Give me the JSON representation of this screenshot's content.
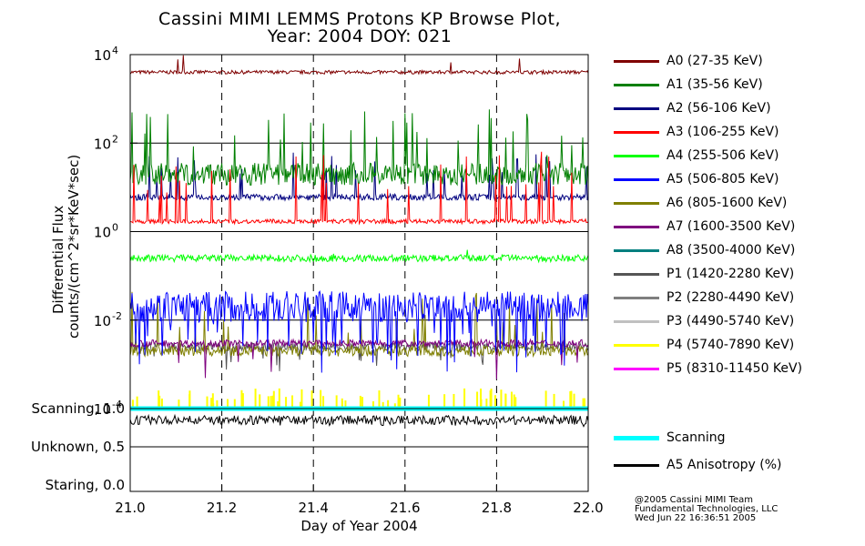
{
  "chart_data": {
    "type": "line",
    "title": [
      "Cassini MIMI LEMMS Protons KP Browse Plot,",
      "Year: 2004 DOY: 021"
    ],
    "xlabel": "Day of Year 2004",
    "ylabel": [
      "Differential Flux",
      "counts/(cm^2*sr*KeV*sec)"
    ],
    "xlim": [
      21.0,
      22.0
    ],
    "x_ticks": [
      "21.0",
      "21.2",
      "21.4",
      "21.6",
      "21.8",
      "22.0"
    ],
    "flux_panel": {
      "yscale": "log",
      "ylim": [
        0.0001,
        10000
      ],
      "y_ticks": [
        "10^4",
        "10^2",
        "10^0",
        "10^-2",
        "10^-4"
      ]
    },
    "status_panel": {
      "ylim": [
        0.0,
        1.0
      ],
      "y_ticks": [
        {
          "label": "Scanning, 1.0",
          "value": 1.0
        },
        {
          "label": "Unknown, 0.5",
          "value": 0.5
        },
        {
          "label": "Staring, 0.0",
          "value": 0.0
        }
      ]
    },
    "series": [
      {
        "name": "A0 (27-35 KeV)",
        "color": "#7f0000",
        "typical": 4000
      },
      {
        "name": "A1 (35-56 KeV)",
        "color": "#007f00",
        "typical": 20
      },
      {
        "name": "A2 (56-106 KeV)",
        "color": "#00007f",
        "typical": 6
      },
      {
        "name": "A3 (106-255 KeV)",
        "color": "#ff0000",
        "typical": 1.7
      },
      {
        "name": "A4 (255-506 KeV)",
        "color": "#00ff00",
        "typical": 0.25
      },
      {
        "name": "A5 (506-805 KeV)",
        "color": "#0000ff",
        "typical": 0.02
      },
      {
        "name": "A6 (805-1600 KeV)",
        "color": "#7f7f00",
        "typical": 0.002
      },
      {
        "name": "A7 (1600-3500 KeV)",
        "color": "#7f007f",
        "typical": 0.003
      },
      {
        "name": "A8 (3500-4000 KeV)",
        "color": "#007f7f",
        "typical": null
      },
      {
        "name": "P1 (1420-2280 KeV)",
        "color": "#555555",
        "typical": 0.0025
      },
      {
        "name": "P2 (2280-4490 KeV)",
        "color": "#7f7f7f",
        "typical": null
      },
      {
        "name": "P3 (4490-5740 KeV)",
        "color": "#c0c0c0",
        "typical": null
      },
      {
        "name": "P4 (5740-7890 KeV)",
        "color": "#ffff00",
        "typical": 0.00013
      },
      {
        "name": "P5 (8310-11450 KeV)",
        "color": "#ff00ff",
        "typical": null
      }
    ],
    "status_series": [
      {
        "name": "Scanning",
        "color": "#00ffff",
        "value": 1.0
      },
      {
        "name": "A5 Anisotropy (%)",
        "color": "#000000",
        "typical": 0.85
      }
    ]
  },
  "credits": [
    "@2005 Cassini MIMI Team",
    "Fundamental Technologies, LLC",
    "Wed Jun 22 16:36:51 2005"
  ]
}
